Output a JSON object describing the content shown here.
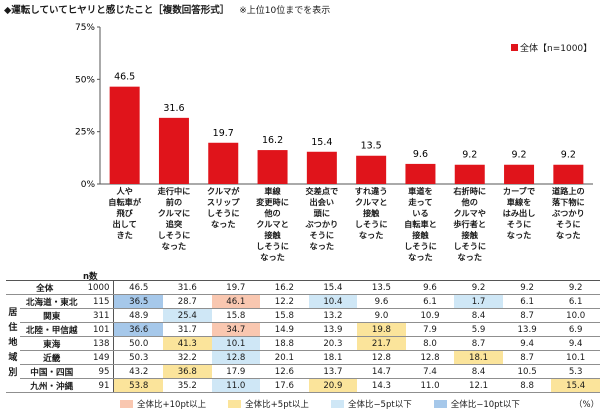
{
  "title": "◆運転していてヒヤリと感じたこと［複数回答形式］",
  "note": "※上位10位までを表示",
  "chart_data": {
    "type": "bar",
    "categories": [
      "人や\n自転車が\n飛び\n出して\nきた",
      "走行中に\n前の\nクルマに\n追突\nしそうに\nなった",
      "クルマが\nスリップ\nしそうに\nなった",
      "車線\n変更時に\n他の\nクルマと\n接触\nしそうに\nなった",
      "交差点で\n出会い\n頭に\nぶつかり\nそうに\nなった",
      "すれ違う\nクルマと\n接触\nしそうに\nなった",
      "車道を\n走って\nいる\n自転車と\n接触\nしそうに\nなった",
      "右折時に\n他の\nクルマや\n歩行者と\n接触\nしそうに\nなった",
      "カーブで\n車線を\nはみ出し\nそうに\nなった",
      "道路上の\n落下物に\nぶつかり\nそうに\nなった"
    ],
    "series": [
      {
        "name": "全体【n=1000】",
        "values": [
          46.5,
          31.6,
          19.7,
          16.2,
          15.4,
          13.5,
          9.6,
          9.2,
          9.2,
          9.2
        ]
      }
    ],
    "yticks": [
      "0%",
      "25%",
      "50%",
      "75%"
    ],
    "ylim": [
      0,
      75
    ],
    "bar_color": "#e0141b"
  },
  "table": {
    "n_header": "n数",
    "group_label": "居住地域別",
    "total_row": {
      "name": "全体",
      "n": "1000",
      "values": [
        "46.5",
        "31.6",
        "19.7",
        "16.2",
        "15.4",
        "13.5",
        "9.6",
        "9.2",
        "9.2",
        "9.2"
      ]
    },
    "rows": [
      {
        "name": "北海道・東北",
        "n": "115",
        "values": [
          "36.5",
          "28.7",
          "46.1",
          "12.2",
          "10.4",
          "9.6",
          "6.1",
          "1.7",
          "6.1",
          "6.1"
        ],
        "hl": [
          "b10",
          "",
          "r10",
          "",
          "b5",
          "",
          "",
          "b5",
          "",
          ""
        ]
      },
      {
        "name": "関東",
        "n": "311",
        "values": [
          "48.9",
          "25.4",
          "15.8",
          "15.8",
          "13.2",
          "9.0",
          "10.9",
          "8.4",
          "8.7",
          "10.0"
        ],
        "hl": [
          "",
          "b5",
          "",
          "",
          "",
          "",
          "",
          "",
          "",
          ""
        ]
      },
      {
        "name": "北陸・甲信越",
        "n": "101",
        "values": [
          "36.6",
          "31.7",
          "34.7",
          "14.9",
          "13.9",
          "19.8",
          "7.9",
          "5.9",
          "13.9",
          "6.9"
        ],
        "hl": [
          "b10",
          "",
          "r10",
          "",
          "",
          "r5",
          "",
          "",
          "",
          ""
        ]
      },
      {
        "name": "東海",
        "n": "138",
        "values": [
          "50.0",
          "41.3",
          "10.1",
          "18.8",
          "20.3",
          "21.7",
          "8.0",
          "8.7",
          "9.4",
          "9.4"
        ],
        "hl": [
          "",
          "r5",
          "b5",
          "",
          "",
          "r5",
          "",
          "",
          "",
          ""
        ]
      },
      {
        "name": "近畿",
        "n": "149",
        "values": [
          "50.3",
          "32.2",
          "12.8",
          "20.1",
          "18.1",
          "12.8",
          "12.8",
          "18.1",
          "8.7",
          "10.1"
        ],
        "hl": [
          "",
          "",
          "b5",
          "",
          "",
          "",
          "",
          "r5",
          "",
          ""
        ]
      },
      {
        "name": "中国・四国",
        "n": "95",
        "values": [
          "43.2",
          "36.8",
          "17.9",
          "12.6",
          "13.7",
          "14.7",
          "7.4",
          "8.4",
          "10.5",
          "5.3"
        ],
        "hl": [
          "",
          "r5",
          "",
          "",
          "",
          "",
          "",
          "",
          "",
          ""
        ]
      },
      {
        "name": "九州・沖縄",
        "n": "91",
        "values": [
          "53.8",
          "35.2",
          "11.0",
          "17.6",
          "20.9",
          "14.3",
          "11.0",
          "12.1",
          "8.8",
          "15.4"
        ],
        "hl": [
          "r5",
          "",
          "b5",
          "",
          "r5",
          "",
          "",
          "",
          "",
          "r5"
        ]
      }
    ]
  },
  "bottom_legend": [
    {
      "label": "全体比+10pt以上",
      "color": "#f9c7b0"
    },
    {
      "label": "全体比+5pt以上",
      "color": "#fbe49b"
    },
    {
      "label": "全体比−5pt以下",
      "color": "#cfe7f6"
    },
    {
      "label": "全体比−10pt以下",
      "color": "#a6c8ea"
    }
  ],
  "percent_unit": "（%）"
}
